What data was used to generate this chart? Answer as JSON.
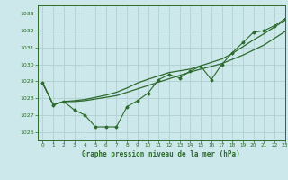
{
  "background_color": "#cce8ea",
  "grid_color": "#b0d0d2",
  "line_color": "#2d6a2d",
  "title": "Graphe pression niveau de la mer (hPa)",
  "xlim": [
    -0.5,
    23
  ],
  "ylim": [
    1025.5,
    1033.5
  ],
  "yticks": [
    1026,
    1027,
    1028,
    1029,
    1030,
    1031,
    1032,
    1033
  ],
  "xticks": [
    0,
    1,
    2,
    3,
    4,
    5,
    6,
    7,
    8,
    9,
    10,
    11,
    12,
    13,
    14,
    15,
    16,
    17,
    18,
    19,
    20,
    21,
    22,
    23
  ],
  "series1": [
    1028.9,
    1027.6,
    1027.8,
    1027.3,
    1027.0,
    1026.3,
    1026.3,
    1026.3,
    1027.5,
    1027.85,
    1028.3,
    1029.1,
    1029.4,
    1029.2,
    1029.6,
    1029.9,
    1029.1,
    1030.0,
    1030.7,
    1031.3,
    1031.9,
    1032.0,
    1032.3,
    1032.7
  ],
  "series2": [
    1028.9,
    1027.6,
    1027.8,
    1027.8,
    1027.85,
    1027.95,
    1028.05,
    1028.15,
    1028.35,
    1028.55,
    1028.75,
    1028.95,
    1029.15,
    1029.35,
    1029.55,
    1029.72,
    1029.88,
    1030.05,
    1030.3,
    1030.55,
    1030.85,
    1031.15,
    1031.55,
    1031.95
  ],
  "series3": [
    1028.9,
    1027.6,
    1027.8,
    1027.85,
    1027.92,
    1028.05,
    1028.18,
    1028.35,
    1028.6,
    1028.9,
    1029.12,
    1029.32,
    1029.52,
    1029.62,
    1029.72,
    1029.92,
    1030.12,
    1030.32,
    1030.65,
    1031.05,
    1031.45,
    1031.82,
    1032.22,
    1032.62
  ]
}
